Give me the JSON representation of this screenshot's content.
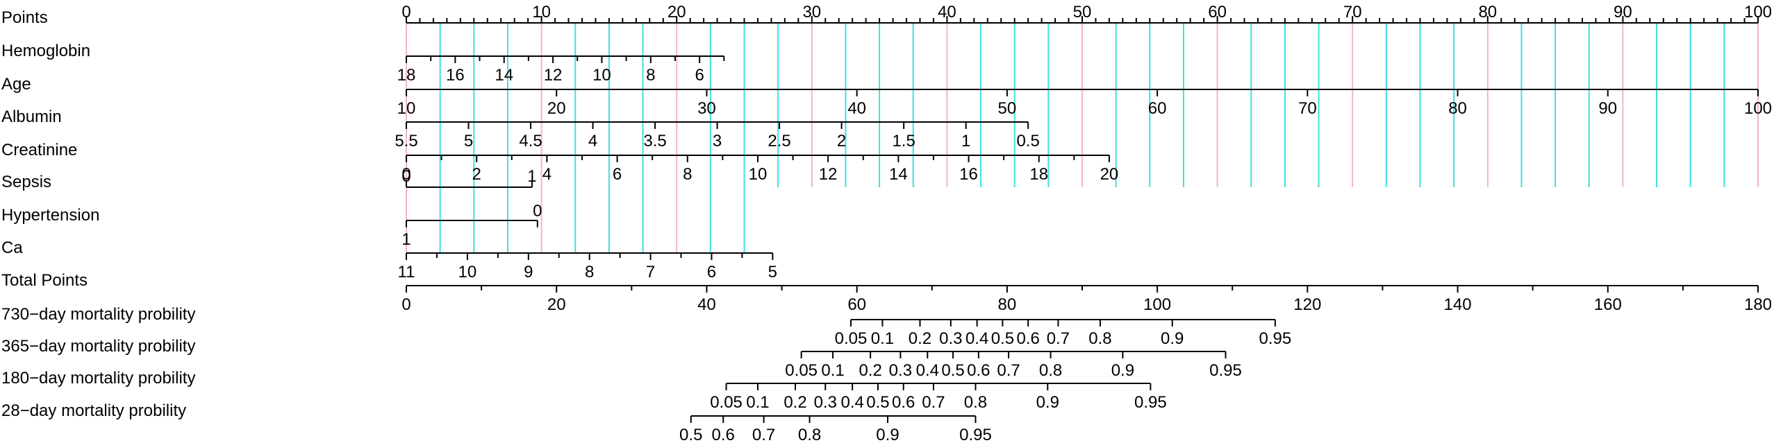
{
  "colors": {
    "grid_major": "#F4B6C2",
    "grid_minor": "#3EE0E0",
    "axis": "#000000",
    "text": "#000000"
  },
  "chart_data": {
    "type": "nomogram",
    "points_range": [
      0,
      100
    ],
    "total_points_range": [
      0,
      180
    ],
    "grid": {
      "major_every_points": 10,
      "minor_every_points": 2.5
    },
    "rows": [
      {
        "label": "Points",
        "scale": "points",
        "value_range": [
          0,
          100
        ],
        "point_range": [
          0,
          100
        ],
        "ticks": [
          0,
          10,
          20,
          30,
          40,
          50,
          60,
          70,
          80,
          90,
          100
        ],
        "minor_ticks": [
          1,
          2,
          3,
          4,
          5,
          6,
          7,
          8,
          9,
          11,
          12,
          13,
          14,
          15,
          16,
          17,
          18,
          19,
          21,
          22,
          23,
          24,
          25,
          26,
          27,
          28,
          29,
          31,
          32,
          33,
          34,
          35,
          36,
          37,
          38,
          39,
          41,
          42,
          43,
          44,
          45,
          46,
          47,
          48,
          49,
          51,
          52,
          53,
          54,
          55,
          56,
          57,
          58,
          59,
          61,
          62,
          63,
          64,
          65,
          66,
          67,
          68,
          69,
          71,
          72,
          73,
          74,
          75,
          76,
          77,
          78,
          79,
          81,
          82,
          83,
          84,
          85,
          86,
          87,
          88,
          89,
          91,
          92,
          93,
          94,
          95,
          96,
          97,
          98,
          99
        ],
        "labels_above": true
      },
      {
        "label": "Hemoglobin",
        "scale": "points",
        "value_range": [
          18,
          5
        ],
        "point_range": [
          0,
          23.5
        ],
        "ticks": [
          18,
          16,
          14,
          12,
          10,
          8,
          6
        ],
        "minor_ticks": [
          17,
          15,
          13,
          11,
          9,
          7,
          5
        ]
      },
      {
        "label": "Age",
        "scale": "points",
        "value_range": [
          10,
          100
        ],
        "point_range": [
          0,
          100
        ],
        "ticks": [
          10,
          20,
          30,
          40,
          50,
          60,
          70,
          80,
          90,
          100
        ],
        "minor_ticks": []
      },
      {
        "label": "Albumin",
        "scale": "points",
        "value_range": [
          5.5,
          0.5
        ],
        "point_range": [
          0,
          46
        ],
        "ticks": [
          5.5,
          5,
          4.5,
          4,
          3.5,
          3,
          2.5,
          2,
          1.5,
          1,
          0.5
        ],
        "minor_ticks": []
      },
      {
        "label": "Creatinine",
        "scale": "points",
        "value_range": [
          0,
          20
        ],
        "point_range": [
          0,
          52
        ],
        "ticks": [
          0,
          2,
          4,
          6,
          8,
          10,
          12,
          14,
          16,
          18,
          20
        ],
        "minor_ticks": [
          1,
          3,
          5,
          7,
          9,
          11,
          13,
          15,
          17,
          19
        ]
      },
      {
        "label": "Sepsis",
        "scale": "points",
        "value_range": [
          0,
          1
        ],
        "point_range": [
          0,
          9.3
        ],
        "ticks": [
          0,
          1
        ],
        "minor_ticks": [],
        "labels_above": true
      },
      {
        "label": "Hypertension",
        "scale": "points",
        "value_range": [
          0,
          1
        ],
        "point_range": [
          9.7,
          0
        ],
        "ticks": [
          0,
          1
        ],
        "label_points": [
          9.7,
          0
        ],
        "label_texts": [
          "0",
          "1"
        ],
        "minor_ticks": [],
        "mixed_labels": true
      },
      {
        "label": "Ca",
        "scale": "points",
        "value_range": [
          11,
          5
        ],
        "point_range": [
          0,
          27.1
        ],
        "ticks": [
          11,
          10,
          9,
          8,
          7,
          6,
          5
        ],
        "minor_ticks": [
          10.5,
          9.5,
          8.5,
          7.5,
          6.5,
          5.5
        ]
      },
      {
        "label": "Total Points",
        "scale": "total",
        "value_range": [
          0,
          180
        ],
        "point_range": [
          0,
          180
        ],
        "ticks": [
          0,
          20,
          40,
          60,
          80,
          100,
          120,
          140,
          160,
          180
        ],
        "minor_ticks": [
          10,
          30,
          50,
          70,
          90,
          110,
          130,
          150,
          170
        ]
      },
      {
        "label": "730−day mortality probility",
        "scale": "total",
        "ticks": [
          0.05,
          0.1,
          0.2,
          0.3,
          0.4,
          0.5,
          0.6,
          0.7,
          0.8,
          0.9,
          0.95
        ],
        "tick_points": [
          59.2,
          63.4,
          68.4,
          72.5,
          76,
          79.4,
          82.8,
          86.8,
          92.4,
          102,
          115.7
        ]
      },
      {
        "label": "365−day mortality probility",
        "scale": "total",
        "ticks": [
          0.05,
          0.1,
          0.2,
          0.3,
          0.4,
          0.5,
          0.6,
          0.7,
          0.8,
          0.9,
          0.95
        ],
        "tick_points": [
          52.6,
          56.8,
          61.8,
          65.8,
          69.4,
          72.8,
          76.2,
          80.2,
          85.8,
          95.4,
          109.1
        ]
      },
      {
        "label": "180−day mortality probility",
        "scale": "total",
        "ticks": [
          0.05,
          0.1,
          0.2,
          0.3,
          0.4,
          0.5,
          0.6,
          0.7,
          0.8,
          0.9,
          0.95
        ],
        "tick_points": [
          42.6,
          46.8,
          51.8,
          55.8,
          59.4,
          62.8,
          66.2,
          70.2,
          75.8,
          85.4,
          99.1
        ]
      },
      {
        "label": "28−day mortality probility",
        "scale": "total",
        "ticks": [
          0.5,
          0.6,
          0.7,
          0.8,
          0.9,
          0.95
        ],
        "tick_points": [
          37.9,
          42.2,
          47.6,
          53.7,
          64.1,
          75.8
        ]
      }
    ]
  }
}
